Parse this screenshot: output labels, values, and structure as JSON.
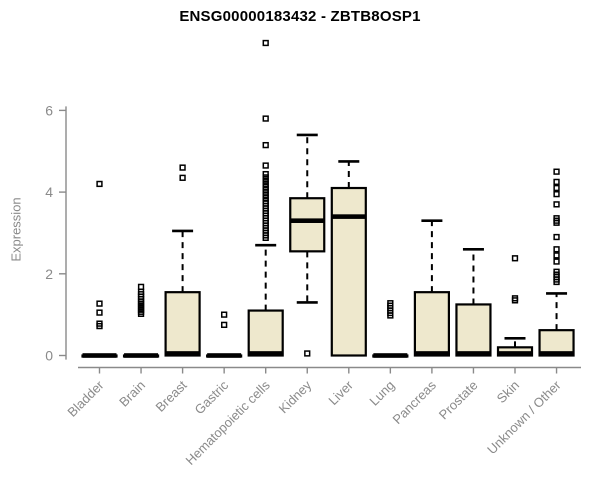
{
  "chart_data": {
    "type": "box",
    "title": "ENSG00000183432 - ZBTB8OSP1",
    "ylabel": "Expression",
    "xlabel": "",
    "ylim": [
      0,
      6
    ],
    "yticks": [
      "0",
      "2",
      "4",
      "6"
    ],
    "grid": false,
    "legend": "none",
    "colors": {
      "box_fill": "#EEE8CD",
      "box_stroke": "#000000",
      "median": "#000000",
      "axis_text": "#8a8a8a",
      "axis_line": "#8a8a8a",
      "title_text": "#000000"
    },
    "categories": [
      {
        "label": "Bladder",
        "q1": 0,
        "median": 0,
        "q3": 0,
        "whisker_low": 0,
        "whisker_high": 0,
        "outliers": [
          0.72,
          0.78,
          1.05,
          1.27,
          4.2
        ]
      },
      {
        "label": "Brain",
        "q1": 0,
        "median": 0,
        "q3": 0,
        "whisker_low": 0,
        "whisker_high": 0,
        "outliers": [
          1.02,
          1.07,
          1.12,
          1.17,
          1.22,
          1.27,
          1.32,
          1.38,
          1.44,
          1.5,
          1.56,
          1.68
        ]
      },
      {
        "label": "Breast",
        "q1": 0,
        "median": 0.05,
        "q3": 1.55,
        "whisker_low": 0,
        "whisker_high": 3.05,
        "outliers": [
          4.35,
          4.6
        ]
      },
      {
        "label": "Gastric",
        "q1": 0,
        "median": 0,
        "q3": 0,
        "whisker_low": 0,
        "whisker_high": 0,
        "outliers": [
          0.75,
          1.0
        ]
      },
      {
        "label": "Hematopoietic cells",
        "q1": 0,
        "median": 0.05,
        "q3": 1.1,
        "whisker_low": 0,
        "whisker_high": 2.7,
        "outliers": [
          2.88,
          2.94,
          3.0,
          3.06,
          3.12,
          3.18,
          3.24,
          3.3,
          3.36,
          3.42,
          3.48,
          3.54,
          3.6,
          3.66,
          3.72,
          3.78,
          3.85,
          3.92,
          3.99,
          4.06,
          4.13,
          4.2,
          4.28,
          4.36,
          4.44,
          4.65,
          5.15,
          5.8,
          7.65
        ]
      },
      {
        "label": "Kidney",
        "q1": 2.55,
        "median": 3.3,
        "q3": 3.85,
        "whisker_low": 1.3,
        "whisker_high": 5.4,
        "outliers": [
          0.05
        ]
      },
      {
        "label": "Liver",
        "q1": 0,
        "median": 3.4,
        "q3": 4.1,
        "whisker_low": 0,
        "whisker_high": 4.75,
        "outliers": []
      },
      {
        "label": "Lung",
        "q1": 0,
        "median": 0,
        "q3": 0,
        "whisker_low": 0,
        "whisker_high": 0,
        "outliers": [
          0.98,
          1.04,
          1.1,
          1.16,
          1.22,
          1.28
        ]
      },
      {
        "label": "Pancreas",
        "q1": 0,
        "median": 0.05,
        "q3": 1.55,
        "whisker_low": 0,
        "whisker_high": 3.3,
        "outliers": []
      },
      {
        "label": "Prostate",
        "q1": 0,
        "median": 0.05,
        "q3": 1.25,
        "whisker_low": 0,
        "whisker_high": 2.6,
        "outliers": []
      },
      {
        "label": "Skin",
        "q1": 0,
        "median": 0.05,
        "q3": 0.2,
        "whisker_low": 0,
        "whisker_high": 0.42,
        "outliers": [
          1.35,
          1.4,
          2.38
        ]
      },
      {
        "label": "Unknown / Other",
        "q1": 0,
        "median": 0.05,
        "q3": 0.62,
        "whisker_low": 0,
        "whisker_high": 1.52,
        "outliers": [
          1.8,
          1.86,
          1.92,
          1.98,
          2.05,
          2.3,
          2.45,
          2.6,
          2.9,
          3.25,
          3.3,
          3.36,
          3.7,
          3.95,
          4.1,
          4.25,
          4.5
        ]
      }
    ]
  }
}
